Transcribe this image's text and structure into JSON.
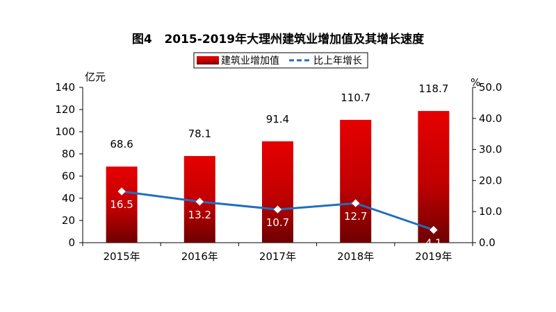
{
  "chart_data": {
    "type": "bar",
    "title": "图4   2015-2019年大理州建筑业增加值及其增长速度",
    "categories": [
      "2015年",
      "2016年",
      "2017年",
      "2018年",
      "2019年"
    ],
    "series": [
      {
        "name": "建筑业增加值",
        "type": "bar",
        "axis": "left",
        "values": [
          68.6,
          78.1,
          91.4,
          110.7,
          118.7
        ],
        "color": "#e60000",
        "color_dark": "#6e0000"
      },
      {
        "name": "比上年增长",
        "type": "line",
        "axis": "right",
        "values": [
          16.5,
          13.2,
          10.7,
          12.7,
          4.1
        ],
        "color": "#1f6fbf"
      }
    ],
    "y_left": {
      "unit": "亿元",
      "min": 0,
      "max": 140,
      "ticks": [
        "0",
        "20",
        "40",
        "60",
        "80",
        "100",
        "120",
        "140"
      ]
    },
    "y_right": {
      "unit": "%",
      "min": 0,
      "max": 50,
      "ticks": [
        "0.0",
        "10.0",
        "20.0",
        "30.0",
        "40.0",
        "50.0"
      ]
    },
    "bar_labels": [
      "68.6",
      "78.1",
      "91.4",
      "110.7",
      "118.7"
    ],
    "line_labels": [
      "16.5",
      "13.2",
      "10.7",
      "12.7",
      "4.1"
    ],
    "legend": "top",
    "grid": false
  }
}
